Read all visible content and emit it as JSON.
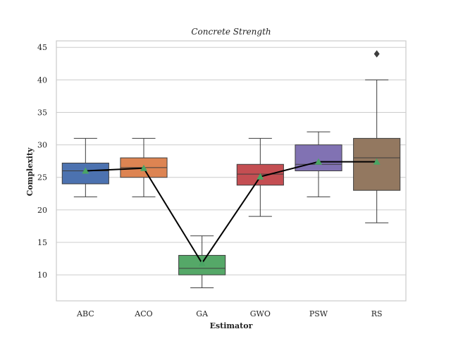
{
  "chart_data": {
    "type": "box",
    "title": "Concrete Strength",
    "xlabel": "Estimator",
    "ylabel": "Complexity",
    "ylim": [
      6,
      46
    ],
    "yticks": [
      10,
      15,
      20,
      25,
      30,
      35,
      40,
      45
    ],
    "grid": "horizontal",
    "categories": [
      "ABC",
      "ACO",
      "GA",
      "GWO",
      "PSW",
      "RS"
    ],
    "colors": [
      "#4c72b0",
      "#dd8452",
      "#55a868",
      "#c44e52",
      "#8172b3",
      "#937860"
    ],
    "boxes": [
      {
        "name": "ABC",
        "whisker_low": 22,
        "q1": 24,
        "median": 26,
        "q3": 27.2,
        "whisker_high": 31,
        "mean": 26,
        "outliers": []
      },
      {
        "name": "ACO",
        "whisker_low": 22,
        "q1": 25,
        "median": 26.5,
        "q3": 28,
        "whisker_high": 31,
        "mean": 26.4,
        "outliers": []
      },
      {
        "name": "GA",
        "whisker_low": 8,
        "q1": 10,
        "median": 11,
        "q3": 13,
        "whisker_high": 16,
        "mean": 11.8,
        "outliers": []
      },
      {
        "name": "GWO",
        "whisker_low": 19,
        "q1": 23.8,
        "median": 25.5,
        "q3": 27,
        "whisker_high": 31,
        "mean": 25.1,
        "outliers": []
      },
      {
        "name": "PSW",
        "whisker_low": 22,
        "q1": 26,
        "median": 27,
        "q3": 30,
        "whisker_high": 32,
        "mean": 27.4,
        "outliers": []
      },
      {
        "name": "RS",
        "whisker_low": 18,
        "q1": 23,
        "median": 28,
        "q3": 31,
        "whisker_high": 40,
        "mean": 27.4,
        "outliers": [
          44
        ]
      }
    ],
    "mean_line_color": "#000000",
    "mean_marker_color": "#4aa564"
  }
}
